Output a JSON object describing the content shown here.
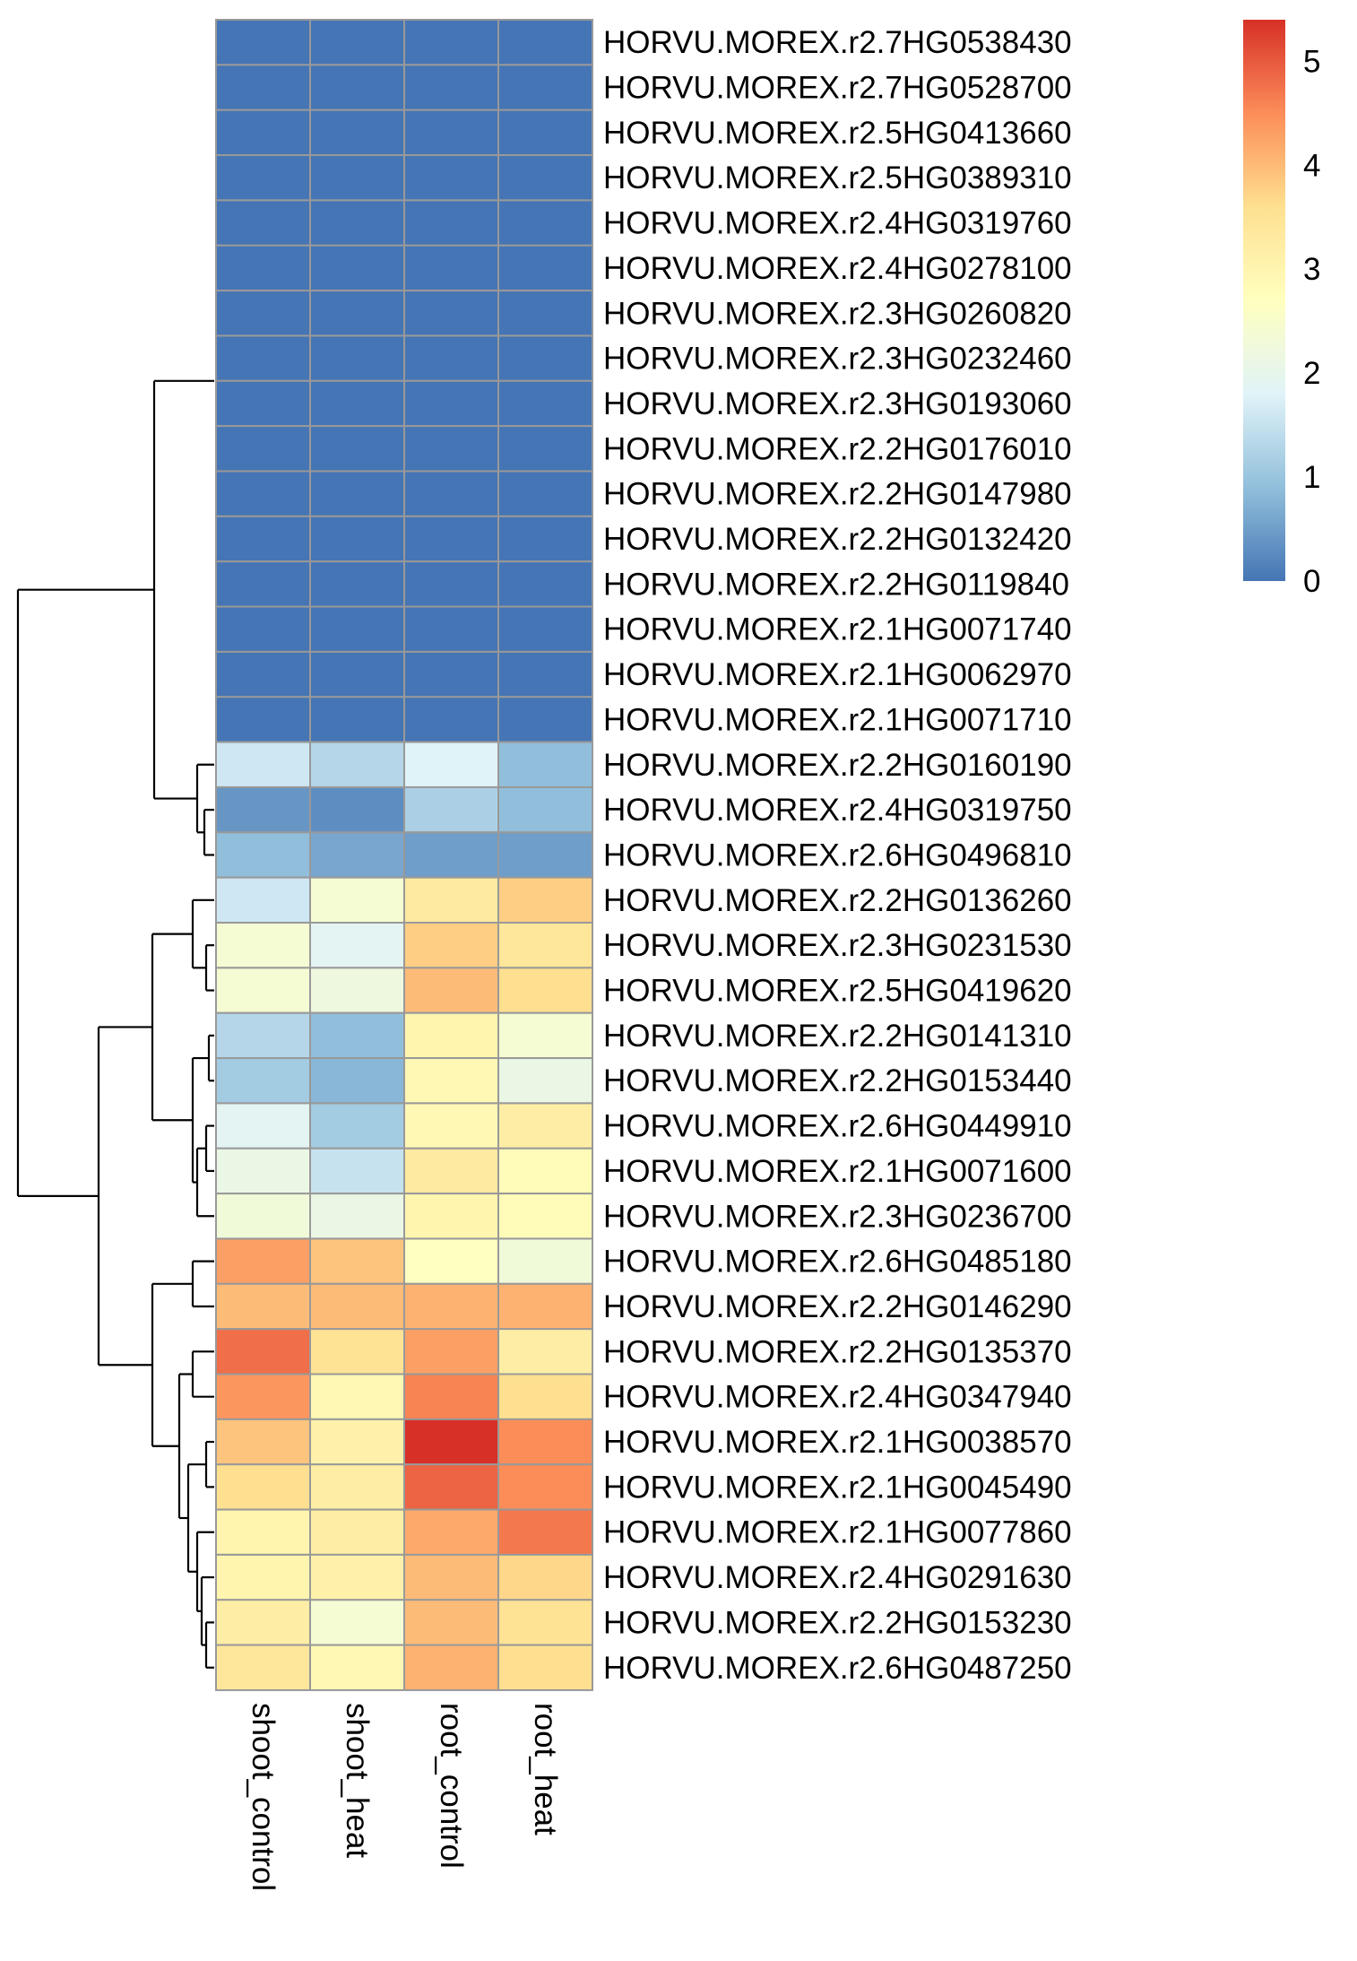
{
  "chart_data": {
    "type": "heatmap",
    "columns": [
      "shoot_control",
      "shoot_heat",
      "root_control",
      "root_heat"
    ],
    "rows": [
      "HORVU.MOREX.r2.7HG0538430",
      "HORVU.MOREX.r2.7HG0528700",
      "HORVU.MOREX.r2.5HG0413660",
      "HORVU.MOREX.r2.5HG0389310",
      "HORVU.MOREX.r2.4HG0319760",
      "HORVU.MOREX.r2.4HG0278100",
      "HORVU.MOREX.r2.3HG0260820",
      "HORVU.MOREX.r2.3HG0232460",
      "HORVU.MOREX.r2.3HG0193060",
      "HORVU.MOREX.r2.2HG0176010",
      "HORVU.MOREX.r2.2HG0147980",
      "HORVU.MOREX.r2.2HG0132420",
      "HORVU.MOREX.r2.2HG0119840",
      "HORVU.MOREX.r2.1HG0071740",
      "HORVU.MOREX.r2.1HG0062970",
      "HORVU.MOREX.r2.1HG0071710",
      "HORVU.MOREX.r2.2HG0160190",
      "HORVU.MOREX.r2.4HG0319750",
      "HORVU.MOREX.r2.6HG0496810",
      "HORVU.MOREX.r2.2HG0136260",
      "HORVU.MOREX.r2.3HG0231530",
      "HORVU.MOREX.r2.5HG0419620",
      "HORVU.MOREX.r2.2HG0141310",
      "HORVU.MOREX.r2.2HG0153440",
      "HORVU.MOREX.r2.6HG0449910",
      "HORVU.MOREX.r2.1HG0071600",
      "HORVU.MOREX.r2.3HG0236700",
      "HORVU.MOREX.r2.6HG0485180",
      "HORVU.MOREX.r2.2HG0146290",
      "HORVU.MOREX.r2.2HG0135370",
      "HORVU.MOREX.r2.4HG0347940",
      "HORVU.MOREX.r2.1HG0038570",
      "HORVU.MOREX.r2.1HG0045490",
      "HORVU.MOREX.r2.1HG0077860",
      "HORVU.MOREX.r2.4HG0291630",
      "HORVU.MOREX.r2.2HG0153230",
      "HORVU.MOREX.r2.6HG0487250"
    ],
    "values": [
      [
        0,
        0,
        0,
        0
      ],
      [
        0,
        0,
        0,
        0
      ],
      [
        0,
        0,
        0,
        0
      ],
      [
        0,
        0,
        0,
        0
      ],
      [
        0,
        0,
        0,
        0
      ],
      [
        0,
        0,
        0,
        0
      ],
      [
        0,
        0,
        0,
        0
      ],
      [
        0,
        0,
        0,
        0
      ],
      [
        0,
        0,
        0,
        0
      ],
      [
        0,
        0,
        0,
        0
      ],
      [
        0,
        0,
        0,
        0
      ],
      [
        0,
        0,
        0,
        0
      ],
      [
        0,
        0,
        0,
        0
      ],
      [
        0,
        0,
        0,
        0
      ],
      [
        0,
        0,
        0,
        0
      ],
      [
        0,
        0,
        0,
        0
      ],
      [
        1.6,
        1.3,
        1.8,
        0.9
      ],
      [
        0.4,
        0.3,
        1.2,
        0.9
      ],
      [
        0.9,
        0.6,
        0.5,
        0.5
      ],
      [
        1.6,
        2.4,
        3.3,
        3.8
      ],
      [
        2.4,
        1.9,
        3.8,
        3.4
      ],
      [
        2.4,
        2.2,
        4.0,
        3.6
      ],
      [
        1.3,
        0.9,
        3.0,
        2.4
      ],
      [
        1.1,
        0.8,
        2.9,
        2.1
      ],
      [
        1.9,
        1.1,
        2.9,
        3.2
      ],
      [
        2.1,
        1.5,
        3.3,
        2.8
      ],
      [
        2.3,
        2.1,
        3.0,
        2.8
      ],
      [
        4.3,
        3.9,
        2.7,
        2.3
      ],
      [
        4.0,
        4.0,
        4.1,
        4.1
      ],
      [
        4.8,
        3.5,
        4.3,
        3.2
      ],
      [
        4.4,
        2.9,
        4.6,
        3.6
      ],
      [
        3.9,
        3.1,
        5.4,
        4.5
      ],
      [
        3.6,
        3.2,
        4.9,
        4.5
      ],
      [
        3.0,
        3.2,
        4.2,
        4.7
      ],
      [
        3.0,
        3.1,
        4.0,
        3.7
      ],
      [
        3.2,
        2.4,
        4.0,
        3.5
      ],
      [
        3.4,
        2.9,
        4.1,
        3.6
      ]
    ],
    "color_scale": {
      "min": 0,
      "max": 5.4,
      "ticks": [
        0,
        1,
        2,
        3,
        4,
        5
      ],
      "colors": [
        "#4575B4",
        "#91BFDB",
        "#E0F3F8",
        "#FFFFBF",
        "#FEE090",
        "#FC8D59",
        "#D73027"
      ]
    },
    "cell_border_color": "#999999",
    "row_dendrogram": "left",
    "legend_placement": "top-right",
    "title": "",
    "xlabel": "",
    "ylabel": ""
  }
}
